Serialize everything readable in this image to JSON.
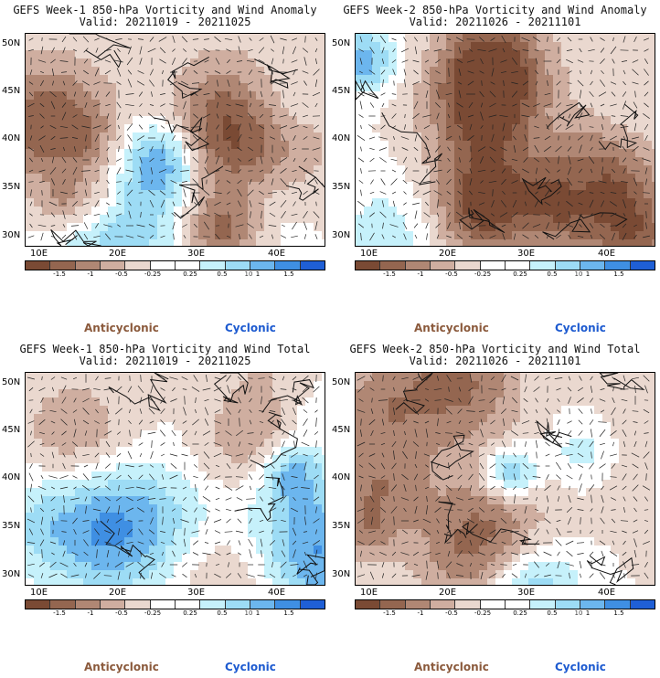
{
  "colors": {
    "anticyclonic_label": "#8B5A3C",
    "cyclonic_label": "#1E5BD0",
    "scale": [
      "#7a4a34",
      "#946650",
      "#b08774",
      "#cfaea0",
      "#ead8cf",
      "#ffffff",
      "#ffffff",
      "#c6f1fb",
      "#9ddcf5",
      "#6cb6ee",
      "#3f8fe3",
      "#1f5fd6"
    ]
  },
  "panels": [
    {
      "title_line1": "GEFS Week-1 850-hPa Vorticity and Wind Anomaly",
      "title_line2": "Valid: 20211019 - 20211025",
      "seed": 11
    },
    {
      "title_line1": "GEFS Week-2 850-hPa Vorticity and Wind Anomaly",
      "title_line2": "Valid: 20211026 - 20211101",
      "seed": 23
    },
    {
      "title_line1": "GEFS Week-1 850-hPa Vorticity and Wind Total",
      "title_line2": "Valid: 20211019 - 20211025",
      "seed": 37
    },
    {
      "title_line1": "GEFS Week-2 850-hPa Vorticity and Wind Total",
      "title_line2": "Valid: 20211026 - 20211101",
      "seed": 53
    }
  ],
  "axes": {
    "lat_labels": [
      "50N",
      "45N",
      "40N",
      "35N",
      "30N"
    ],
    "lon_labels": [
      "10E",
      "20E",
      "30E",
      "40E"
    ]
  },
  "colorbar": {
    "tick_labels": [
      "-1.5",
      "-1",
      "-0.5",
      "-0.25",
      "0.25",
      "0.5",
      "1",
      "1.5"
    ],
    "mid_label": "10",
    "anticyclonic": "Anticyclonic",
    "cyclonic": "Cyclonic"
  }
}
